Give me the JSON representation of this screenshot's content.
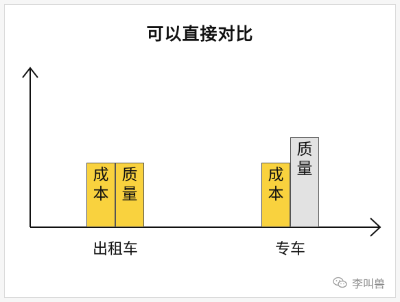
{
  "title": "可以直接对比",
  "colors": {
    "cost": "#f9d23e",
    "quality_left": "#f9d23e",
    "quality_right": "#e2e2e2",
    "axis": "#111111"
  },
  "groups": [
    {
      "category": "出租车",
      "bars": [
        {
          "label": "成本",
          "level": 1.0,
          "color_key": "cost"
        },
        {
          "label": "质量",
          "level": 1.0,
          "color_key": "quality_left"
        }
      ]
    },
    {
      "category": "专车",
      "bars": [
        {
          "label": "成本",
          "level": 1.0,
          "color_key": "cost"
        },
        {
          "label": "质量",
          "level": 1.39,
          "color_key": "quality_right"
        }
      ]
    }
  ],
  "watermark": {
    "text": "李叫兽",
    "icon": "wechat-icon"
  }
}
